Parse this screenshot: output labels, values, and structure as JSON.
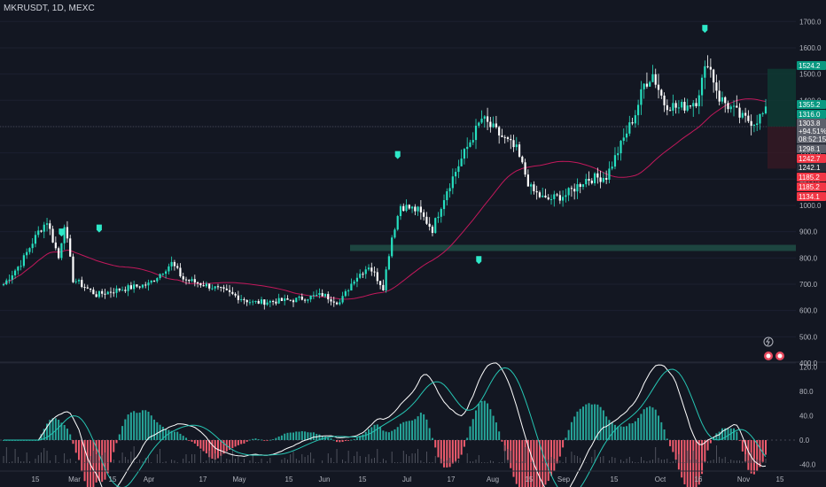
{
  "symbol_line": "MKRUSDT, 1D, MEXC",
  "colors": {
    "background": "#131722",
    "up": "#26e0c0",
    "down": "#ffffff",
    "ma": "#c2185b",
    "hist_up": "#26a69a",
    "hist_down": "#f05c6e",
    "macd": "#ffffff",
    "signal": "#26c6b4",
    "zone": "#1f4a44",
    "grid": "#1c2030"
  },
  "price_axis": {
    "ticks": [
      "1700.0",
      "1600.0",
      "1500.0",
      "1400.0",
      "1300.0",
      "1200.0",
      "1100.0",
      "1000.0",
      "900.0",
      "800.0",
      "700.0",
      "600.0",
      "500.0",
      "400.0"
    ],
    "tags": [
      {
        "text": "1524.2",
        "color": "#089981"
      },
      {
        "text": "1355.2",
        "color": "#089981"
      },
      {
        "text": "1316.0",
        "color": "#089981"
      },
      {
        "text": "1303.8",
        "color": "#5d606b"
      },
      {
        "text": "+94.51%",
        "color": "#5d606b"
      },
      {
        "text": "08:52:15",
        "color": "#5d606b"
      },
      {
        "text": "1298.1",
        "color": "#5d606b"
      },
      {
        "text": "1242.7",
        "color": "#f23645"
      },
      {
        "text": "1242.1",
        "color": "#2a2e39"
      },
      {
        "text": "1185.2",
        "color": "#f23645"
      },
      {
        "text": "1185.2",
        "color": "#f23645"
      },
      {
        "text": "1134.1",
        "color": "#f23645"
      }
    ]
  },
  "osc_axis": {
    "ticks": [
      "120.0",
      "80.0",
      "40.0",
      "0.0",
      "-40.0"
    ]
  },
  "time_axis": {
    "labels": [
      "15",
      "Mar",
      "15",
      "Apr",
      "17",
      "May",
      "15",
      "Jun",
      "15",
      "Jul",
      "17",
      "Aug",
      "15",
      "Sep",
      "15",
      "Oct",
      "16",
      "Nov",
      "15"
    ]
  },
  "chart_data": [
    {
      "type": "candlestick",
      "title": "MKRUSDT, 1D, MEXC",
      "ylim": [
        400,
        1700
      ],
      "x_months": [
        "Mar",
        "Apr",
        "May",
        "Jun",
        "Jul",
        "Aug",
        "Sep",
        "Oct",
        "Nov"
      ],
      "close_path": [
        [
          "mid Feb",
          700
        ],
        [
          "late Feb",
          780
        ],
        [
          "early Mar",
          900
        ],
        [
          "Mar 5",
          940
        ],
        [
          "Mar 10",
          800
        ],
        [
          "Mar 12",
          930
        ],
        [
          "Mar 15",
          720
        ],
        [
          "late Mar",
          660
        ],
        [
          "Apr 1",
          680
        ],
        [
          "Apr 10",
          700
        ],
        [
          "Apr 17",
          780
        ],
        [
          "Apr 20",
          720
        ],
        [
          "May 1",
          690
        ],
        [
          "May 15",
          630
        ],
        [
          "Jun 1",
          640
        ],
        [
          "Jun 10",
          660
        ],
        [
          "Jun 15",
          630
        ],
        [
          "Jun 20",
          720
        ],
        [
          "Jun 25",
          770
        ],
        [
          "Jul 1",
          690
        ],
        [
          "Jul 3",
          880
        ],
        [
          "Jul 6",
          1000
        ],
        [
          "Jul 12",
          980
        ],
        [
          "Jul 17",
          910
        ],
        [
          "Jul 22",
          1060
        ],
        [
          "Jul 28",
          1200
        ],
        [
          "Aug 3",
          1330
        ],
        [
          "Aug 8",
          1280
        ],
        [
          "Aug 15",
          1210
        ],
        [
          "Aug 20",
          1060
        ],
        [
          "Aug 25",
          1020
        ],
        [
          "Sep 1",
          1040
        ],
        [
          "Sep 8",
          1100
        ],
        [
          "Sep 15",
          1110
        ],
        [
          "Sep 20",
          1230
        ],
        [
          "Sep 25",
          1350
        ],
        [
          "Sep 28",
          1460
        ],
        [
          "Oct 1",
          1500
        ],
        [
          "Oct 5",
          1390
        ],
        [
          "Oct 10",
          1370
        ],
        [
          "Oct 16",
          1400
        ],
        [
          "Oct 20",
          1550
        ],
        [
          "Oct 24",
          1410
        ],
        [
          "Nov 1",
          1330
        ],
        [
          "Nov 5",
          1320
        ],
        [
          "Nov 9",
          1355
        ]
      ],
      "last_price": 1303.8,
      "change_pct": "+94.51%"
    },
    {
      "type": "line+bar",
      "name": "oscillator",
      "ylim": [
        -40,
        120
      ],
      "macd_peaks": [
        [
          "Mar 5",
          50
        ],
        [
          "Jul 28",
          100
        ],
        [
          "Oct 1",
          80
        ]
      ],
      "macd_troughs": [
        [
          "Mar 20",
          -35
        ],
        [
          "Sep 5",
          -30
        ],
        [
          "Nov 10",
          -25
        ]
      ]
    }
  ]
}
